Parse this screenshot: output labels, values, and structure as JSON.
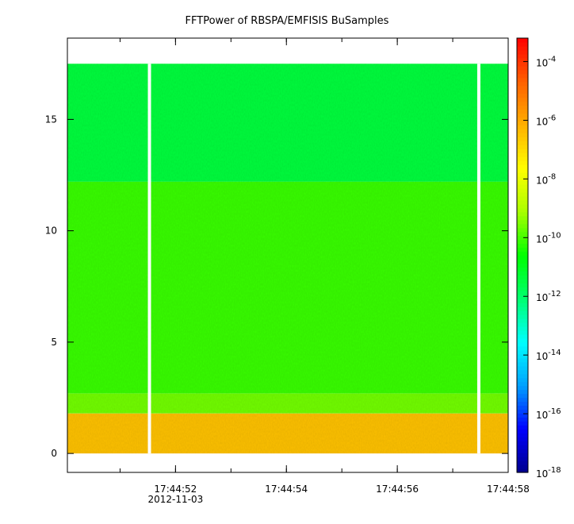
{
  "chart_data": {
    "type": "heatmap",
    "title": "FFTPower of RBSPA/EMFISIS  BuSamples",
    "xlabel": "",
    "ylabel": "",
    "x_ticks": [
      {
        "label": "17:44:52",
        "sub": "2012-11-03",
        "t": 52
      },
      {
        "label": "17:44:54",
        "sub": "",
        "t": 54
      },
      {
        "label": "17:44:56",
        "sub": "",
        "t": 56
      },
      {
        "label": "17:44:58",
        "sub": "",
        "t": 58
      }
    ],
    "xlim_seconds": [
      49.05,
      57.0
    ],
    "x_minor_step": 1,
    "y_ticks": [
      0,
      5,
      10,
      15
    ],
    "ylim": [
      -0.85,
      18.65
    ],
    "data_ylim": [
      0,
      17.5
    ],
    "gaps_seconds": [
      50.53,
      56.47
    ],
    "bands": [
      {
        "y_from": 0,
        "y_to": 1.8,
        "log10_power": -6.5
      },
      {
        "y_from": 1.8,
        "y_to": 2.7,
        "log10_power": -9.6
      },
      {
        "y_from": 2.7,
        "y_to": 12.2,
        "log10_power": -10.1
      },
      {
        "y_from": 12.2,
        "y_to": 17.5,
        "log10_power": -11.4
      }
    ],
    "colorbar": {
      "scale": "log",
      "range_exp": [
        -18,
        -3.2
      ],
      "tick_exps": [
        -4,
        -6,
        -8,
        -10,
        -12,
        -14,
        -16,
        -18
      ],
      "base_label": "10",
      "colors": [
        "#00008c",
        "#0000ff",
        "#00a0ff",
        "#00ffff",
        "#00ff70",
        "#00ff00",
        "#a8ff00",
        "#ffff00",
        "#ffb000",
        "#ff6000",
        "#ff0000"
      ]
    },
    "grid": false,
    "legend": "none"
  }
}
